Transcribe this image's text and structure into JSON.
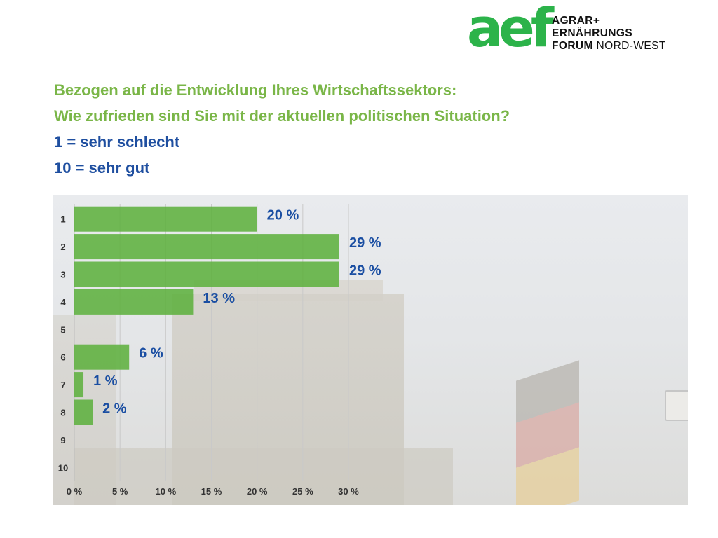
{
  "logo": {
    "mark": "aef",
    "lines": [
      {
        "bold": "AGRAR+",
        "thin": ""
      },
      {
        "bold": "ERNÄHRUNGS",
        "thin": ""
      },
      {
        "bold": "FORUM",
        "thin": " NORD-WEST"
      }
    ]
  },
  "question": {
    "line1": "Bezogen auf die Entwicklung Ihres Wirtschaftssektors:",
    "line2": "Wie zufrieden sind Sie mit der aktuellen politischen Situation?",
    "scale_low": "1 = sehr schlecht",
    "scale_high": "10 = sehr gut"
  },
  "colors": {
    "brand_green": "#7ab648",
    "logo_green": "#2cb34a",
    "scale_blue": "#1f4fa0",
    "bar_green": "#5fb03f",
    "label_blue": "#1a4ea2"
  },
  "chart_data": {
    "type": "bar",
    "orientation": "horizontal",
    "categories": [
      "1",
      "2",
      "3",
      "4",
      "5",
      "6",
      "7",
      "8",
      "9",
      "10"
    ],
    "values": [
      20,
      29,
      29,
      13,
      0,
      6,
      1,
      2,
      0,
      0
    ],
    "data_labels": [
      "20 %",
      "29 %",
      "29 %",
      "13 %",
      "",
      "6 %",
      "1 %",
      "2 %",
      "",
      ""
    ],
    "x_ticks": [
      0,
      5,
      10,
      15,
      20,
      25,
      30
    ],
    "x_tick_labels": [
      "0 %",
      "5 %",
      "10 %",
      "15 %",
      "20 %",
      "25 %",
      "30 %"
    ],
    "xlim": [
      0,
      30
    ],
    "grid": "vertical"
  }
}
